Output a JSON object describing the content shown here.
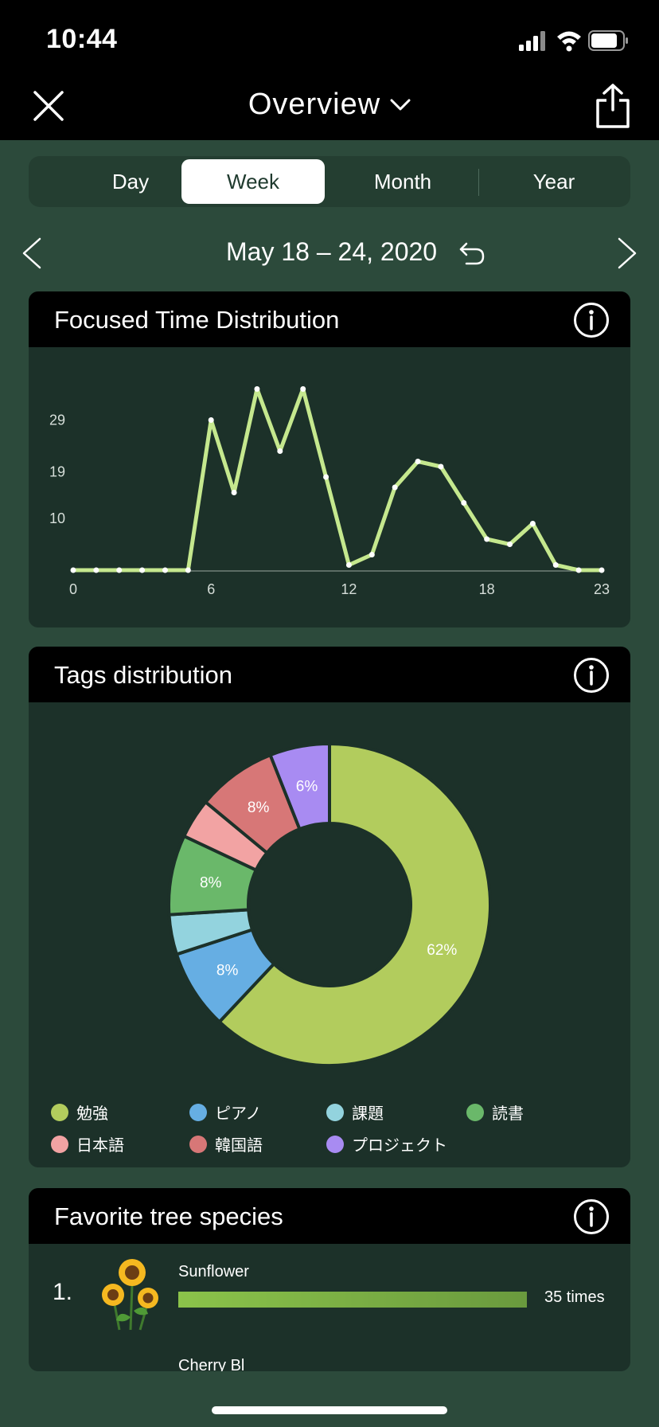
{
  "status": {
    "time": "10:44"
  },
  "nav": {
    "title": "Overview"
  },
  "segments": [
    {
      "label": "Day",
      "active": false
    },
    {
      "label": "Week",
      "active": true
    },
    {
      "label": "Month",
      "active": false
    },
    {
      "label": "Year",
      "active": false
    }
  ],
  "date_range": "May 18 – 24, 2020",
  "focused_card": {
    "title": "Focused Time Distribution"
  },
  "tags_card": {
    "title": "Tags distribution"
  },
  "trees_card": {
    "title": "Favorite tree species",
    "items": [
      {
        "rank": "1.",
        "name": "Sunflower",
        "count": "35 times",
        "fraction": 1.0
      },
      {
        "rank": "",
        "name": "Cherry Bl",
        "count": "",
        "fraction": 0
      }
    ]
  },
  "chart_data": [
    {
      "type": "line",
      "title": "Focused Time Distribution",
      "x": [
        0,
        1,
        2,
        3,
        4,
        5,
        6,
        7,
        8,
        9,
        10,
        11,
        12,
        13,
        14,
        15,
        16,
        17,
        18,
        19,
        20,
        21,
        22,
        23
      ],
      "values": [
        0,
        0,
        0,
        0,
        0,
        0,
        29,
        15,
        35,
        23,
        35,
        18,
        1,
        3,
        16,
        21,
        20,
        13,
        6,
        5,
        9,
        1,
        0,
        0
      ],
      "x_tick_labels": [
        "0",
        "6",
        "12",
        "18",
        "23"
      ],
      "x_ticks": [
        0,
        6,
        12,
        18,
        23
      ],
      "y_tick_labels": [
        "10",
        "19",
        "29"
      ],
      "y_ticks": [
        10,
        19,
        29
      ],
      "ylim": [
        0,
        40
      ],
      "grid": false,
      "color": "#c5e88e"
    },
    {
      "type": "pie",
      "title": "Tags distribution",
      "donut": true,
      "slices": [
        {
          "name": "勉強",
          "value": 62,
          "label": "62%",
          "color": "#b2cc5d"
        },
        {
          "name": "ピアノ",
          "value": 8,
          "label": "8%",
          "color": "#66aee3"
        },
        {
          "name": "課題",
          "value": 4,
          "label": "",
          "color": "#93d3de"
        },
        {
          "name": "読書",
          "value": 8,
          "label": "8%",
          "color": "#6ab86a"
        },
        {
          "name": "日本語",
          "value": 4,
          "label": "",
          "color": "#f2a3a3"
        },
        {
          "name": "韓国語",
          "value": 8,
          "label": "8%",
          "color": "#d77777"
        },
        {
          "name": "プロジェクト",
          "value": 6,
          "label": "6%",
          "color": "#a88bf2"
        }
      ],
      "legend": "bottom"
    }
  ]
}
